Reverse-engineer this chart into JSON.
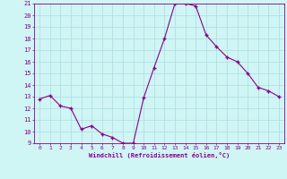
{
  "x": [
    0,
    1,
    2,
    3,
    4,
    5,
    6,
    7,
    8,
    9,
    10,
    11,
    12,
    13,
    14,
    15,
    16,
    17,
    18,
    19,
    20,
    21,
    22,
    23
  ],
  "y": [
    12.8,
    13.1,
    12.2,
    12.0,
    10.2,
    10.5,
    9.8,
    9.5,
    9.0,
    9.0,
    12.9,
    15.5,
    18.0,
    21.0,
    21.0,
    20.8,
    18.3,
    17.3,
    16.4,
    16.0,
    15.0,
    13.8,
    13.5,
    13.0
  ],
  "line_color": "#880088",
  "marker": "+",
  "marker_size": 3.5,
  "marker_lw": 1.0,
  "bg_color": "#cff5f5",
  "grid_color": "#aadddd",
  "tick_color": "#880088",
  "label_color": "#880088",
  "xlabel": "Windchill (Refroidissement éolien,°C)",
  "ylim": [
    9,
    21
  ],
  "xlim": [
    -0.5,
    23.5
  ],
  "yticks": [
    9,
    10,
    11,
    12,
    13,
    14,
    15,
    16,
    17,
    18,
    19,
    20,
    21
  ],
  "xticks": [
    0,
    1,
    2,
    3,
    4,
    5,
    6,
    7,
    8,
    9,
    10,
    11,
    12,
    13,
    14,
    15,
    16,
    17,
    18,
    19,
    20,
    21,
    22,
    23
  ],
  "line_width": 0.8,
  "border_color": "#880088",
  "fig_width": 3.2,
  "fig_height": 2.0,
  "dpi": 100
}
